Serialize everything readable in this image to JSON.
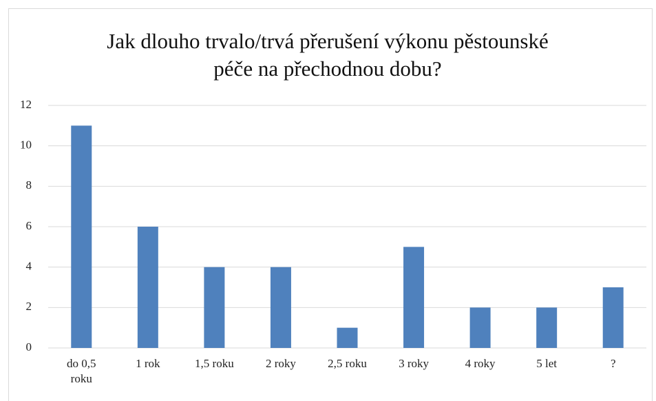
{
  "chart_data": {
    "type": "bar",
    "title": "Jak dlouho trvalo/trvá přerušení výkonu pěstounské péče na přechodnou dobu?",
    "categories": [
      "do 0,5 roku",
      "1 rok",
      "1,5 roku",
      "2 roky",
      "2,5 roku",
      "3 roky",
      "4 roky",
      "5 let",
      "?"
    ],
    "values": [
      11,
      6,
      4,
      4,
      1,
      5,
      2,
      2,
      3
    ],
    "color": "#4f81bd",
    "ylim": [
      0,
      12
    ],
    "yticks": [
      0,
      2,
      4,
      6,
      8,
      10,
      12
    ],
    "grid": true
  }
}
